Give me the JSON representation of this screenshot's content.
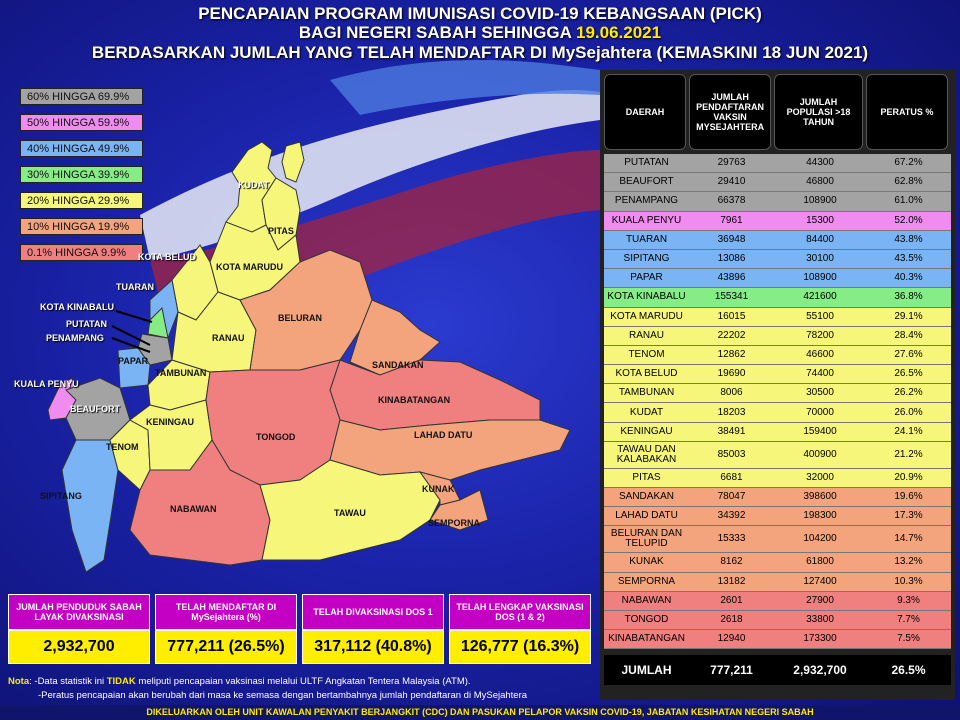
{
  "header": {
    "line1": "PENCAPAIAN PROGRAM IMUNISASI COVID-19 KEBANGSAAN (PICK)",
    "line2_prefix": "BAGI NEGERI SABAH SEHINGGA ",
    "line2_date": "19.06.2021",
    "line3": "BERDASARKAN JUMLAH YANG TELAH MENDAFTAR DI MySejahtera (KEMASKINI 18 JUN 2021)"
  },
  "legend": [
    {
      "label": "60% HINGGA 69.9%",
      "color": "#a3a3a3"
    },
    {
      "label": "50% HINGGA 59.9%",
      "color": "#f08cf0"
    },
    {
      "label": "40% HINGGA 49.9%",
      "color": "#7ab4f5"
    },
    {
      "label": "30% HINGGA 39.9%",
      "color": "#86ec86"
    },
    {
      "label": "20% HINGGA 29.9%",
      "color": "#f6f67a"
    },
    {
      "label": "10% HINGGA 19.9%",
      "color": "#f4a47c"
    },
    {
      "label": "0.1% HINGGA 9.9%",
      "color": "#f08080"
    }
  ],
  "map_labels": {
    "kudat": "KUDAT",
    "pitas": "PITAS",
    "kota_marudu": "KOTA MARUDU",
    "kota_belud": "KOTA BELUD",
    "tuaran": "TUARAN",
    "kota_kinabalu": "KOTA KINABALU",
    "putatan": "PUTATAN",
    "penampang": "PENAMPANG",
    "papar": "PAPAR",
    "kuala_penyu": "KUALA PENYU",
    "beaufort": "BEAUFORT",
    "ranau": "RANAU",
    "tambunan": "TAMBUNAN",
    "beluran": "BELURAN",
    "sandakan": "SANDAKAN",
    "kinabatangan": "KINABATANGAN",
    "keningau": "KENINGAU",
    "tenom": "TENOM",
    "tongod": "TONGOD",
    "lahad_datu": "LAHAD DATU",
    "sipitang": "SIPITANG",
    "nabawan": "NABAWAN",
    "kunak": "KUNAK",
    "tawau": "TAWAU",
    "semporna": "SEMPORNA"
  },
  "table": {
    "headers": [
      "DAERAH",
      "JUMLAH PENDAFTARAN VAKSIN MYSEJAHTERA",
      "JUMLAH POPULASI >18 TAHUN",
      "PERATUS %"
    ],
    "rows": [
      {
        "daerah": "PUTATAN",
        "daftar": "29763",
        "populasi": "44300",
        "peratus": "67.2%",
        "color": "#a3a3a3"
      },
      {
        "daerah": "BEAUFORT",
        "daftar": "29410",
        "populasi": "46800",
        "peratus": "62.8%",
        "color": "#a3a3a3"
      },
      {
        "daerah": "PENAMPANG",
        "daftar": "66378",
        "populasi": "108900",
        "peratus": "61.0%",
        "color": "#a3a3a3"
      },
      {
        "daerah": "KUALA PENYU",
        "daftar": "7961",
        "populasi": "15300",
        "peratus": "52.0%",
        "color": "#f08cf0"
      },
      {
        "daerah": "TUARAN",
        "daftar": "36948",
        "populasi": "84400",
        "peratus": "43.8%",
        "color": "#7ab4f5"
      },
      {
        "daerah": "SIPITANG",
        "daftar": "13086",
        "populasi": "30100",
        "peratus": "43.5%",
        "color": "#7ab4f5"
      },
      {
        "daerah": "PAPAR",
        "daftar": "43896",
        "populasi": "108900",
        "peratus": "40.3%",
        "color": "#7ab4f5"
      },
      {
        "daerah": "KOTA KINABALU",
        "daftar": "155341",
        "populasi": "421600",
        "peratus": "36.8%",
        "color": "#86ec86"
      },
      {
        "daerah": "KOTA MARUDU",
        "daftar": "16015",
        "populasi": "55100",
        "peratus": "29.1%",
        "color": "#f6f67a"
      },
      {
        "daerah": "RANAU",
        "daftar": "22202",
        "populasi": "78200",
        "peratus": "28.4%",
        "color": "#f6f67a"
      },
      {
        "daerah": "TENOM",
        "daftar": "12862",
        "populasi": "46600",
        "peratus": "27.6%",
        "color": "#f6f67a"
      },
      {
        "daerah": "KOTA BELUD",
        "daftar": "19690",
        "populasi": "74400",
        "peratus": "26.5%",
        "color": "#f6f67a"
      },
      {
        "daerah": "TAMBUNAN",
        "daftar": "8006",
        "populasi": "30500",
        "peratus": "26.2%",
        "color": "#f6f67a"
      },
      {
        "daerah": "KUDAT",
        "daftar": "18203",
        "populasi": "70000",
        "peratus": "26.0%",
        "color": "#f6f67a"
      },
      {
        "daerah": "KENINGAU",
        "daftar": "38491",
        "populasi": "159400",
        "peratus": "24.1%",
        "color": "#f6f67a"
      },
      {
        "daerah": "TAWAU DAN KALABAKAN",
        "daftar": "85003",
        "populasi": "400900",
        "peratus": "21.2%",
        "color": "#f6f67a",
        "tall": true
      },
      {
        "daerah": "PITAS",
        "daftar": "6681",
        "populasi": "32000",
        "peratus": "20.9%",
        "color": "#f6f67a"
      },
      {
        "daerah": "SANDAKAN",
        "daftar": "78047",
        "populasi": "398600",
        "peratus": "19.6%",
        "color": "#f4a47c"
      },
      {
        "daerah": "LAHAD DATU",
        "daftar": "34392",
        "populasi": "198300",
        "peratus": "17.3%",
        "color": "#f4a47c"
      },
      {
        "daerah": "BELURAN DAN TELUPID",
        "daftar": "15333",
        "populasi": "104200",
        "peratus": "14.7%",
        "color": "#f4a47c",
        "tall": true
      },
      {
        "daerah": "KUNAK",
        "daftar": "8162",
        "populasi": "61800",
        "peratus": "13.2%",
        "color": "#f4a47c"
      },
      {
        "daerah": "SEMPORNA",
        "daftar": "13182",
        "populasi": "127400",
        "peratus": "10.3%",
        "color": "#f4a47c"
      },
      {
        "daerah": "NABAWAN",
        "daftar": "2601",
        "populasi": "27900",
        "peratus": "9.3%",
        "color": "#f08080"
      },
      {
        "daerah": "TONGOD",
        "daftar": "2618",
        "populasi": "33800",
        "peratus": "7.7%",
        "color": "#f08080"
      },
      {
        "daerah": "KINABATANGAN",
        "daftar": "12940",
        "populasi": "173300",
        "peratus": "7.5%",
        "color": "#f08080"
      }
    ],
    "total": {
      "label": "JUMLAH",
      "daftar": "777,211",
      "populasi": "2,932,700",
      "peratus": "26.5%"
    }
  },
  "stats": [
    {
      "label": "JUMLAH PENDUDUK SABAH LAYAK DIVAKSINASI",
      "value": "2,932,700"
    },
    {
      "label": "TELAH MENDAFTAR DI MySejahtera (%)",
      "value": "777,211 (26.5%)"
    },
    {
      "label": "TELAH DIVAKSINASI DOS 1",
      "value": "317,112 (40.8%)"
    },
    {
      "label": "TELAH LENGKAP VAKSINASI DOS (1 & 2)",
      "value": "126,777 (16.3%)"
    }
  ],
  "notes": {
    "nota_label": "Nota",
    "line1_a": ": -Data statistik ini ",
    "line1_tidak": "TIDAK",
    "line1_b": " meliputi pencapaian vaksinasi melalui ULTF Angkatan Tentera Malaysia (ATM).",
    "line2": "-Peratus pencapaian akan berubah dari masa ke semasa dengan bertambahnya jumlah pendaftaran di MySejahtera"
  },
  "footer": "DIKELUARKAN OLEH UNIT KAWALAN PENYAKIT BERJANGKIT (CDC) DAN PASUKAN PELAPOR VAKSIN COVID-19, JABATAN KESIHATAN NEGERI SABAH"
}
